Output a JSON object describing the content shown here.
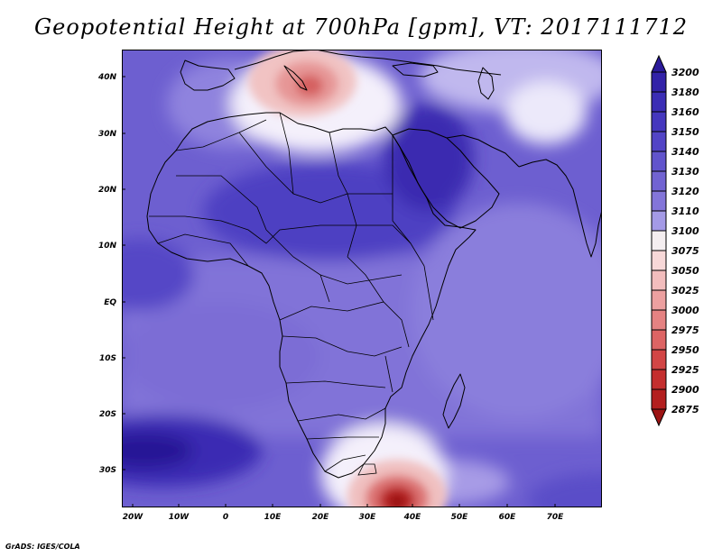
{
  "title": "Geopotential Height at 700hPa [gpm], VT: 2017111712",
  "credit": "GrADS: IGES/COLA",
  "lat_labels": [
    "40N",
    "30N",
    "20N",
    "10N",
    "EQ",
    "10S",
    "20S",
    "30S"
  ],
  "lon_labels": [
    "20W",
    "10W",
    "0",
    "10E",
    "20E",
    "30E",
    "40E",
    "50E",
    "60E",
    "70E"
  ],
  "colorbar": {
    "levels": [
      "3200",
      "3180",
      "3160",
      "3150",
      "3140",
      "3130",
      "3120",
      "3110",
      "3100",
      "3075",
      "3050",
      "3025",
      "3000",
      "2975",
      "2950",
      "2925",
      "2900",
      "2875"
    ],
    "colors": [
      "#2b1a9a",
      "#3222a8",
      "#3b2db5",
      "#4537be",
      "#5244c6",
      "#6154cc",
      "#7163d2",
      "#8375d9",
      "#a49ae6",
      "#f4eef0",
      "#f7d8d8",
      "#f2bdbd",
      "#eca0a0",
      "#e58282",
      "#dd6464",
      "#d24545",
      "#c42e2e",
      "#b31f1f",
      "#9c1414"
    ]
  }
}
